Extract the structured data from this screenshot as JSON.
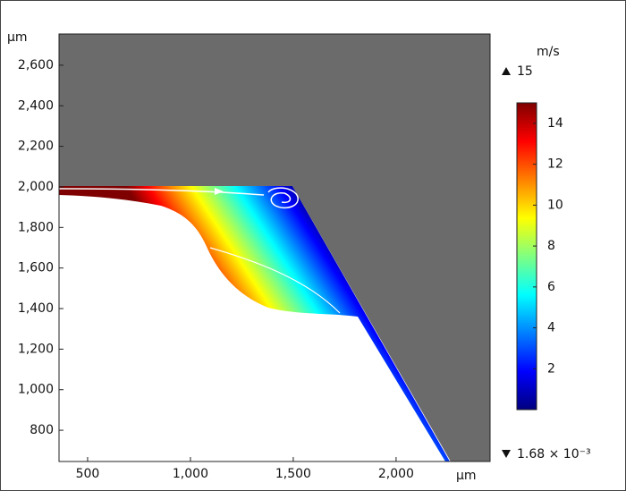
{
  "chart_data": {
    "type": "surface",
    "x_label": "μm",
    "y_label": "μm",
    "colorbar_label": "m/s",
    "xlim": [
      361,
      2457
    ],
    "ylim": [
      646,
      2754
    ],
    "xticks": [
      500,
      {
        "value": 1000,
        "label": "1,000"
      },
      {
        "value": 1500,
        "label": "1,500"
      },
      {
        "value": 2000,
        "label": "2,000"
      }
    ],
    "yticks": [
      800,
      {
        "value": 1000,
        "label": "1,000"
      },
      {
        "value": 1200,
        "label": "1,200"
      },
      {
        "value": 1400,
        "label": "1,400"
      },
      {
        "value": 1600,
        "label": "1,600"
      },
      {
        "value": 1800,
        "label": "1,800"
      },
      {
        "value": 2000,
        "label": "2,000"
      },
      {
        "value": 2200,
        "label": "2,200"
      },
      {
        "value": 2400,
        "label": "2,400"
      },
      {
        "value": 2600,
        "label": "2,600"
      }
    ],
    "clim": [
      {
        "value": 0.00168,
        "label": "1.68 × 10⁻³"
      },
      15
    ],
    "cticks": [
      2,
      4,
      6,
      8,
      10,
      12,
      14
    ],
    "colormap": [
      "#00007f",
      "#0000ff",
      "#0080ff",
      "#00ffff",
      "#80ff80",
      "#ffff00",
      "#ff8000",
      "#ff0000",
      "#7f0000"
    ],
    "solid_color": "#6b6b6b"
  }
}
